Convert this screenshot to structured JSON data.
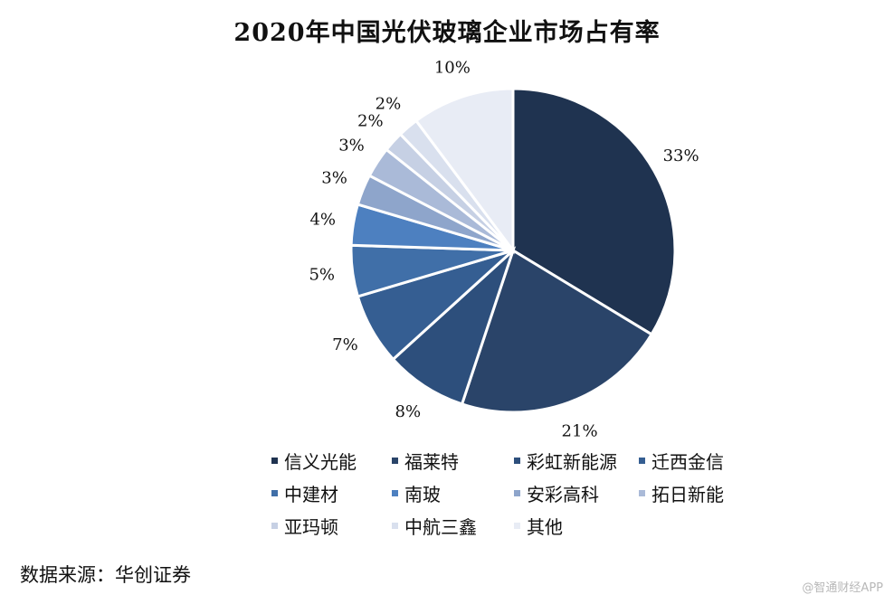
{
  "chart_data": {
    "type": "pie",
    "title": "2020年中国光伏玻璃企业市场占有率",
    "slices": [
      {
        "label": "信义光能",
        "value": 33,
        "display": "33%",
        "color": "#1f3350"
      },
      {
        "label": "福莱特",
        "value": 21,
        "display": "21%",
        "color": "#2a4469"
      },
      {
        "label": "彩虹新能源",
        "value": 8,
        "display": "8%",
        "color": "#2d4f7c"
      },
      {
        "label": "迁西金信",
        "value": 7,
        "display": "7%",
        "color": "#355e92"
      },
      {
        "label": "中建材",
        "value": 5,
        "display": "5%",
        "color": "#406fa8"
      },
      {
        "label": "南玻",
        "value": 4,
        "display": "4%",
        "color": "#4d80c0"
      },
      {
        "label": "安彩高科",
        "value": 3,
        "display": "3%",
        "color": "#8ea5cb"
      },
      {
        "label": "拓日新能",
        "value": 3,
        "display": "3%",
        "color": "#aabad8"
      },
      {
        "label": "亚玛顿",
        "value": 2,
        "display": "2%",
        "color": "#c6d0e4"
      },
      {
        "label": "中航三鑫",
        "value": 2,
        "display": "2%",
        "color": "#d9e0ee"
      },
      {
        "label": "其他",
        "value": 10,
        "display": "10%",
        "color": "#e8ecf5"
      }
    ],
    "legend_position": "bottom"
  },
  "footer": {
    "source": "数据来源：华创证券",
    "watermark": "@智通财经APP"
  }
}
